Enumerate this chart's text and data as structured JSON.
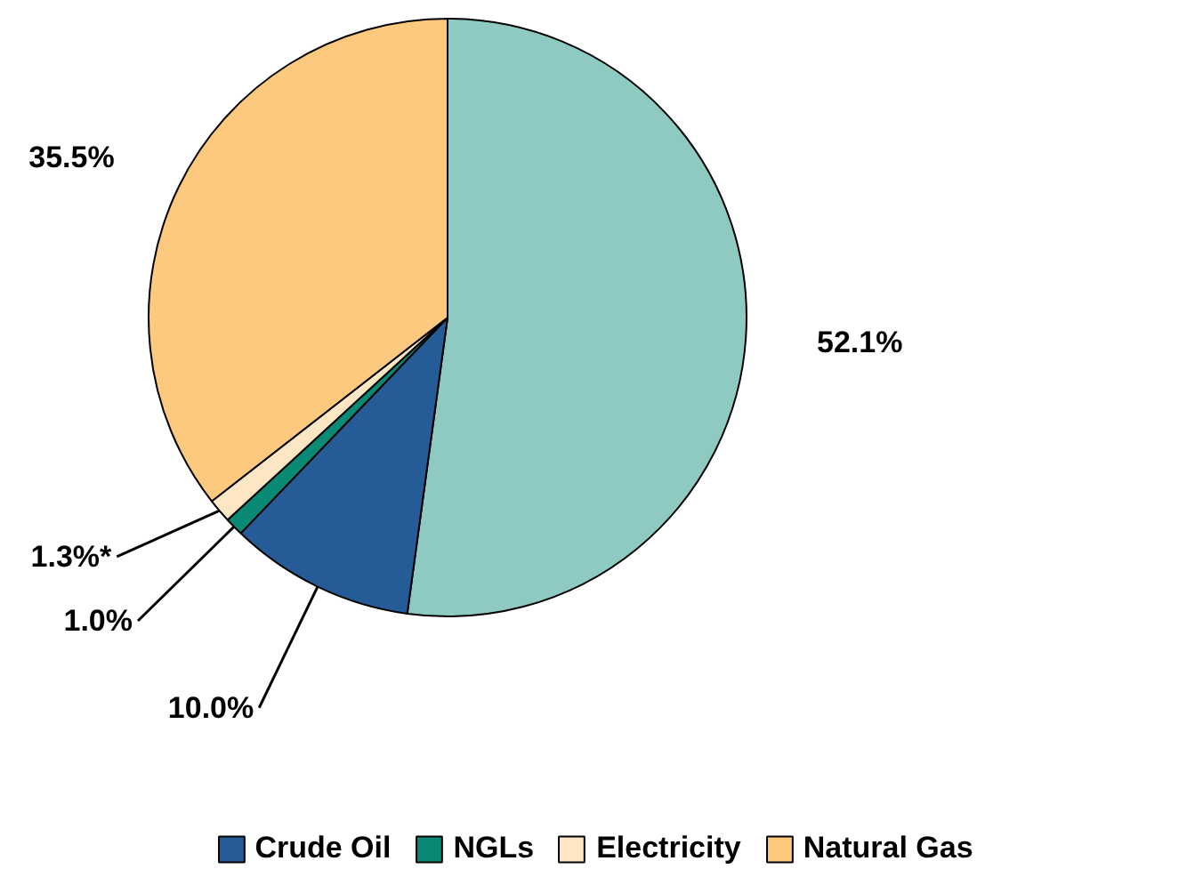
{
  "chart_data": {
    "type": "pie",
    "categories": [
      null,
      "Crude Oil",
      "NGLs",
      "Electricity",
      "Natural Gas"
    ],
    "values": [
      52.1,
      10.0,
      1.0,
      1.3,
      35.5
    ],
    "colors": [
      "#8fcac2",
      "#255b96",
      "#0a8a74",
      "#fde6c4",
      "#fdc97e"
    ],
    "value_labels": [
      "52.1%",
      "10.0%",
      "1.0%",
      "1.3%*",
      "35.5%"
    ],
    "legend": "bottom"
  }
}
